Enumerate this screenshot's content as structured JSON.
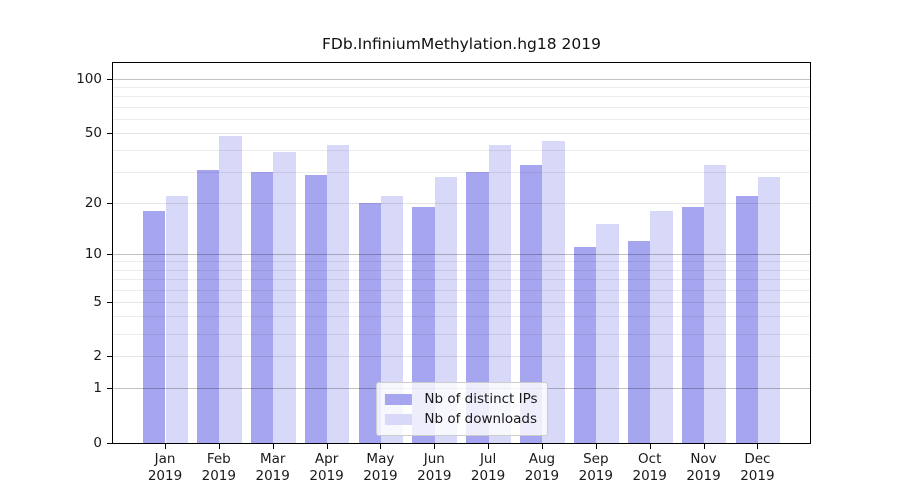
{
  "title": "FDb.InfiniumMethylation.hg18 2019",
  "chart_data": {
    "type": "bar",
    "title": "FDb.InfiniumMethylation.hg18 2019",
    "categories": [
      "Jan 2019",
      "Feb 2019",
      "Mar 2019",
      "Apr 2019",
      "May 2019",
      "Jun 2019",
      "Jul 2019",
      "Aug 2019",
      "Sep 2019",
      "Oct 2019",
      "Nov 2019",
      "Dec 2019"
    ],
    "series": [
      {
        "name": "Nb of distinct IPs",
        "color": "#a5a5f0",
        "values": [
          18,
          31,
          30,
          29,
          20,
          19,
          30,
          33,
          11,
          12,
          19,
          22
        ]
      },
      {
        "name": "Nb of downloads",
        "color": "#d8d8f8",
        "values": [
          22,
          48,
          39,
          43,
          22,
          28,
          43,
          45,
          15,
          18,
          33,
          28
        ]
      }
    ],
    "xlabel": "",
    "ylabel": "",
    "yscale": "log1p",
    "ylim": [
      0,
      120
    ],
    "yticks": [
      0,
      1,
      2,
      5,
      10,
      20,
      50,
      100
    ],
    "minor_yticks": [
      3,
      4,
      6,
      7,
      8,
      9,
      30,
      40,
      60,
      70,
      80,
      90
    ],
    "emphasized_gridlines": [
      1,
      10,
      100
    ],
    "grid": true,
    "legend_position": "lower center"
  },
  "colors": {
    "bar_distinct_ips": "#a5a5f0",
    "bar_downloads": "#d8d8f8",
    "grid_minor": "rgba(0,0,0,0.07)",
    "grid_major": "rgba(0,0,0,0.10)",
    "grid_emphasized": "rgba(0,0,0,0.24)",
    "axis": "#000000",
    "text": "#1a1a1a",
    "legend_border": "#cccccc",
    "legend_bg": "rgba(255,255,255,0.8)"
  }
}
